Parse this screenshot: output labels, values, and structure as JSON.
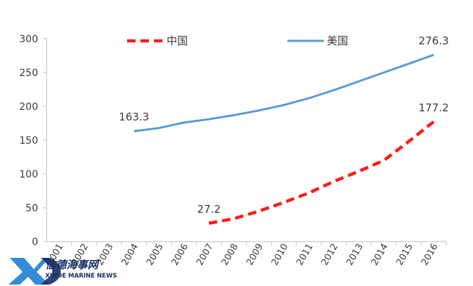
{
  "chart_data": {
    "type": "line",
    "title": "",
    "xlabel": "",
    "ylabel": "",
    "ylim": [
      0,
      300
    ],
    "yticks": [
      0,
      50,
      100,
      150,
      200,
      250,
      300
    ],
    "categories": [
      "2001",
      "2002",
      "2003",
      "2004",
      "2005",
      "2006",
      "2007",
      "2008",
      "2009",
      "2010",
      "2011",
      "2012",
      "2013",
      "2014",
      "2015",
      "2016"
    ],
    "grid": false,
    "legend": "top",
    "series": [
      {
        "name": "中国",
        "style": "dashed",
        "color": "#ff1a1a",
        "values": [
          null,
          null,
          null,
          null,
          null,
          null,
          27.2,
          34,
          45,
          58,
          72,
          89,
          104,
          120,
          148,
          177.2
        ],
        "labels": [
          {
            "index": 6,
            "text": "27.2"
          },
          {
            "index": 15,
            "text": "177.2"
          }
        ]
      },
      {
        "name": "美国",
        "style": "solid",
        "color": "#5b9bd5",
        "values": [
          null,
          null,
          null,
          163.3,
          168,
          176,
          181,
          187,
          194,
          202,
          212,
          224,
          237,
          250,
          263,
          276.3
        ],
        "labels": [
          {
            "index": 3,
            "text": "163.3"
          },
          {
            "index": 15,
            "text": "276.3"
          }
        ]
      }
    ]
  },
  "watermark": {
    "logo_text": "XD",
    "cn_text": "信德海事网",
    "en_text": "XINDE MARINE NEWS"
  }
}
